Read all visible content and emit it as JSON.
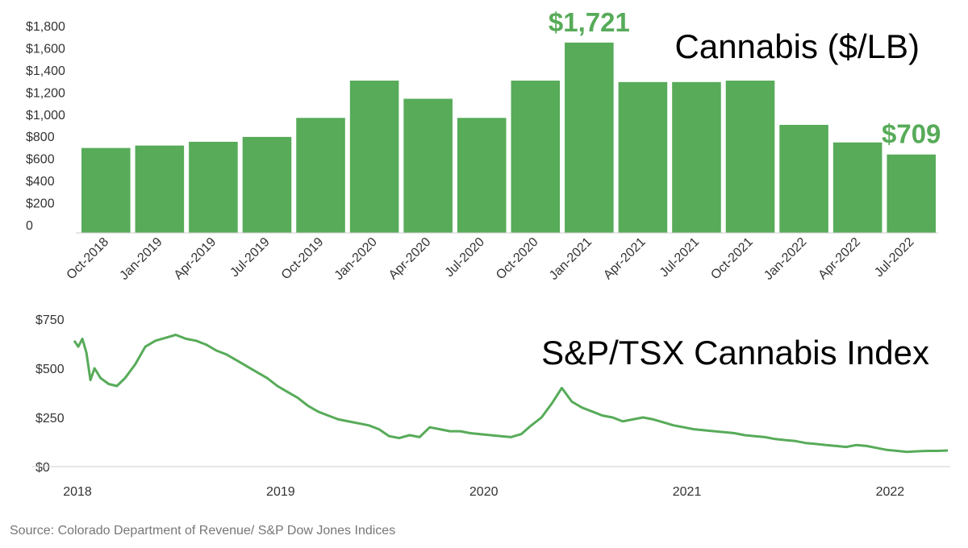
{
  "colors": {
    "bar": "#57ab59",
    "line": "#57ab59",
    "callout": "#57ab59",
    "axis": "#cfcfcf"
  },
  "chart_data": [
    {
      "type": "bar",
      "title": "Cannabis ($/LB)",
      "categories": [
        "Oct-2018",
        "Jan-2019",
        "Apr-2019",
        "Jul-2019",
        "Oct-2019",
        "Jan-2020",
        "Apr-2020",
        "Jul-2020",
        "Oct-2020",
        "Jan-2021",
        "Apr-2021",
        "Jul-2021",
        "Oct-2021",
        "Jan-2022",
        "Apr-2022",
        "Jul-2022"
      ],
      "values": [
        768,
        790,
        824,
        868,
        1040,
        1377,
        1213,
        1040,
        1377,
        1721,
        1364,
        1364,
        1377,
        977,
        818,
        709
      ],
      "ylim": [
        0,
        1900
      ],
      "yticks": [
        0,
        200,
        400,
        600,
        800,
        1000,
        1200,
        1400,
        1600,
        1800
      ],
      "ytick_labels": [
        "0",
        "$200",
        "$400",
        "$600",
        "$800",
        "$1,000",
        "$1,200",
        "$1,400",
        "$1,600",
        "$1,800"
      ],
      "annotations": [
        {
          "category": "Jan-2021",
          "text": "$1,721"
        },
        {
          "category": "Jul-2022",
          "text": "$709"
        }
      ]
    },
    {
      "type": "line",
      "title": "S&P/TSX Cannabis Index",
      "xlim": [
        2018.0,
        2022.32
      ],
      "ylim": [
        0,
        760
      ],
      "yticks": [
        0,
        250,
        500,
        750
      ],
      "ytick_labels": [
        "$0",
        "$250",
        "$500",
        "$750"
      ],
      "xticks": [
        2018,
        2019,
        2020,
        2021,
        2022
      ],
      "xtick_labels": [
        "2018",
        "2019",
        "2020",
        "2021",
        "2022"
      ],
      "series": [
        {
          "x": [
            2018.0,
            2018.02,
            2018.04,
            2018.06,
            2018.08,
            2018.1,
            2018.13,
            2018.17,
            2018.21,
            2018.25,
            2018.3,
            2018.35,
            2018.4,
            2018.45,
            2018.5,
            2018.55,
            2018.6,
            2018.65,
            2018.7,
            2018.75,
            2018.8,
            2018.85,
            2018.9,
            2018.95,
            2019.0,
            2019.05,
            2019.1,
            2019.15,
            2019.2,
            2019.25,
            2019.3,
            2019.35,
            2019.4,
            2019.45,
            2019.5,
            2019.55,
            2019.6,
            2019.65,
            2019.7,
            2019.75,
            2019.8,
            2019.85,
            2019.9,
            2019.95,
            2020.0,
            2020.05,
            2020.1,
            2020.15,
            2020.2,
            2020.25,
            2020.3,
            2020.35,
            2020.4,
            2020.45,
            2020.5,
            2020.55,
            2020.6,
            2020.65,
            2020.7,
            2020.75,
            2020.8,
            2020.85,
            2020.9,
            2020.95,
            2021.0,
            2021.05,
            2021.1,
            2021.15,
            2021.2,
            2021.25,
            2021.3,
            2021.35,
            2021.4,
            2021.45,
            2021.5,
            2021.55,
            2021.6,
            2021.65,
            2021.7,
            2021.75,
            2021.8,
            2021.85,
            2021.9,
            2021.95,
            2022.0,
            2022.05,
            2022.1,
            2022.15,
            2022.2,
            2022.25,
            2022.3
          ],
          "values": [
            640,
            610,
            650,
            580,
            440,
            500,
            450,
            420,
            410,
            450,
            520,
            610,
            640,
            655,
            670,
            650,
            640,
            620,
            590,
            570,
            540,
            510,
            480,
            450,
            410,
            380,
            350,
            310,
            280,
            260,
            240,
            230,
            220,
            210,
            190,
            155,
            145,
            160,
            150,
            200,
            190,
            180,
            180,
            170,
            165,
            160,
            155,
            150,
            165,
            210,
            250,
            320,
            400,
            330,
            300,
            280,
            260,
            250,
            230,
            240,
            250,
            240,
            225,
            210,
            200,
            190,
            185,
            180,
            175,
            170,
            160,
            155,
            150,
            140,
            135,
            130,
            120,
            115,
            110,
            105,
            100,
            110,
            105,
            95,
            85,
            80,
            75,
            78,
            80,
            80,
            82
          ]
        }
      ]
    }
  ],
  "source": "Source: Colorado Department of Revenue/ S&P Dow Jones Indices"
}
